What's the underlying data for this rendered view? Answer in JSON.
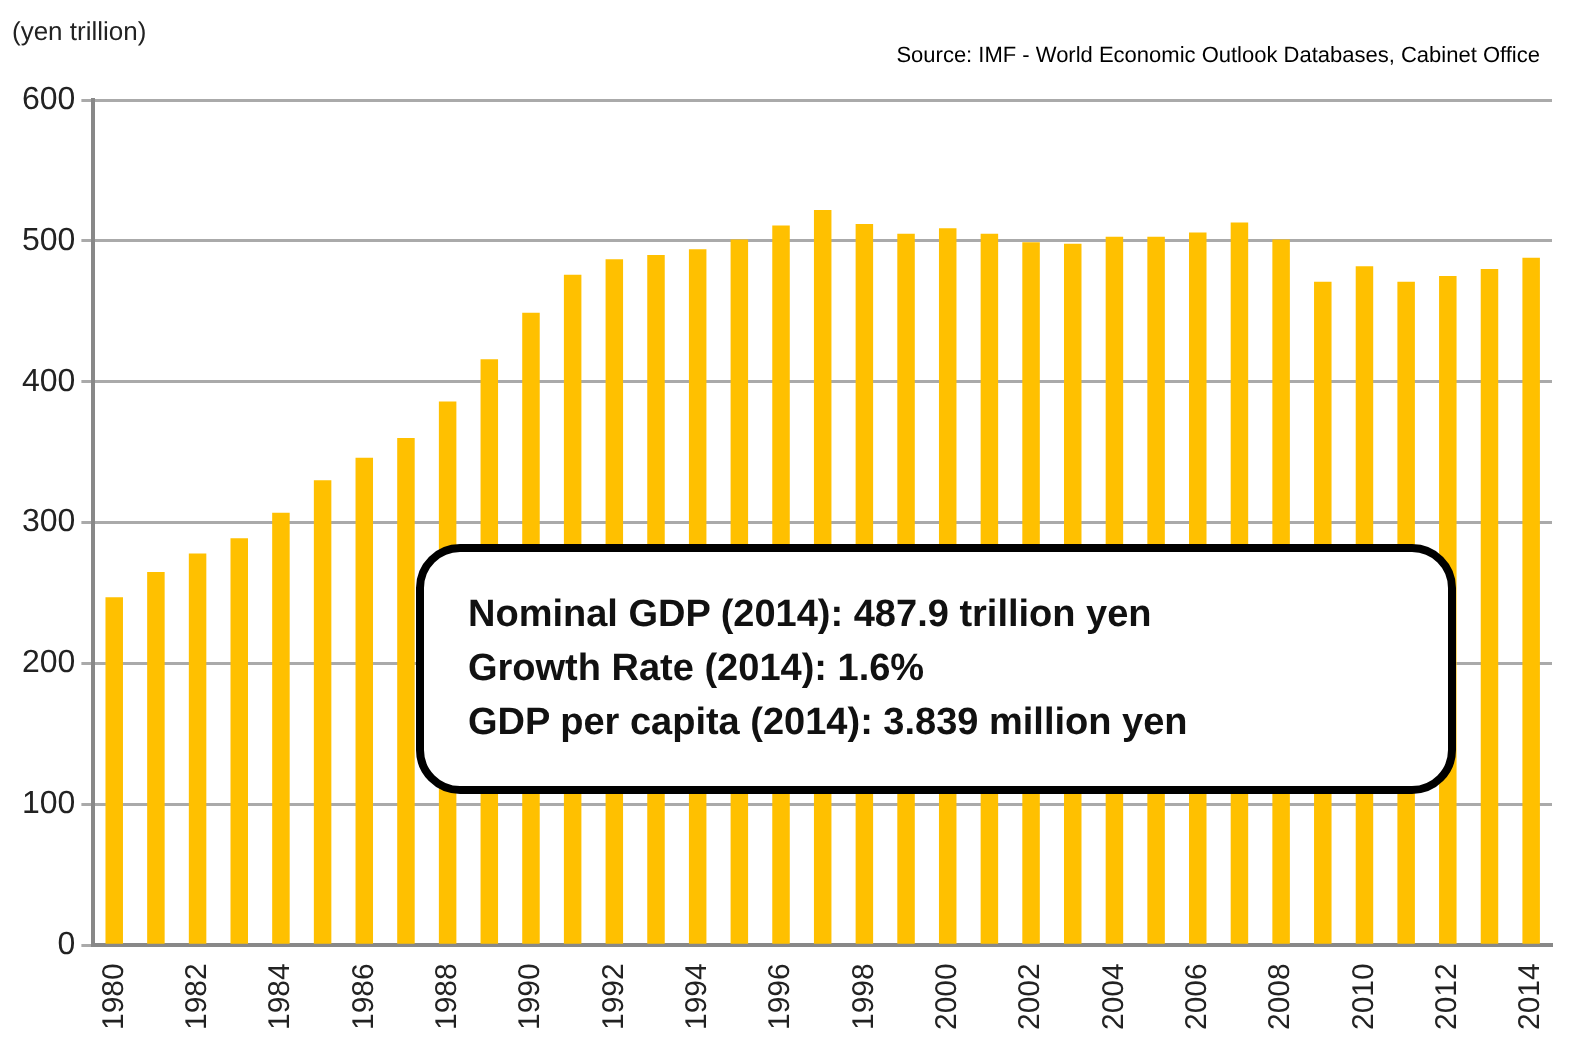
{
  "chart_data": {
    "type": "bar",
    "ylabel": "(yen trillion)",
    "categories": [
      "1980",
      null,
      "1982",
      null,
      "1984",
      null,
      "1986",
      null,
      "1988",
      null,
      "1990",
      null,
      "1992",
      null,
      "1994",
      null,
      "1996",
      null,
      "1998",
      null,
      "2000",
      null,
      "2002",
      null,
      "2004",
      null,
      "2006",
      null,
      "2008",
      null,
      "2010",
      null,
      "2012",
      null,
      "2014"
    ],
    "values": [
      247,
      265,
      278,
      289,
      307,
      330,
      346,
      360,
      386,
      416,
      449,
      476,
      487,
      490,
      494,
      501,
      511,
      522,
      512,
      505,
      509,
      505,
      499,
      498,
      503,
      503,
      506,
      513,
      501,
      471,
      482,
      471,
      475,
      480,
      488
    ],
    "color": "#ffc000",
    "ylim": [
      0,
      600
    ],
    "yticks": [
      0,
      100,
      200,
      300,
      400,
      500,
      600
    ],
    "grid": "y",
    "annotations": [
      "Source: IMF - World Economic Outlook Databases, Cabinet Office",
      "Nominal GDP (2014): 487.9 trillion yen",
      "Growth Rate (2014): 1.6%",
      "GDP per capita (2014): 3.839 million yen"
    ]
  }
}
